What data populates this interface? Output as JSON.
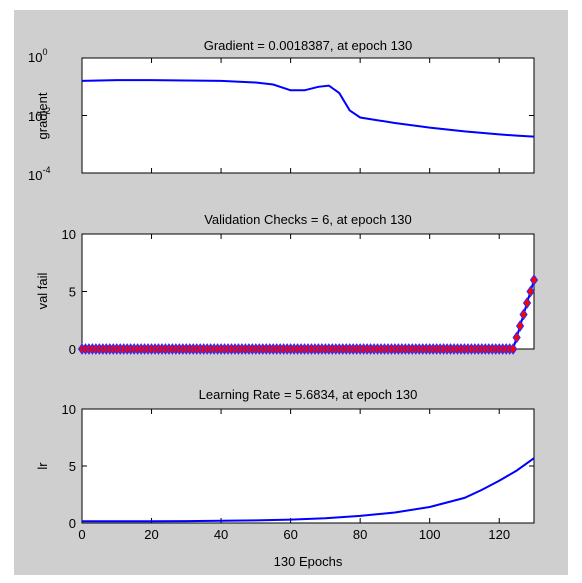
{
  "colors": {
    "figure_bg": "#cfcfcf",
    "axes_bg": "#ffffff",
    "line": "#0000ff",
    "marker_fill": "#ff0000",
    "marker_edge": "#2b2bff"
  },
  "chart_data": [
    {
      "type": "line",
      "title": "Gradient = 0.0018387, at epoch 130",
      "ylabel": "gradient",
      "xlabel": "",
      "yscale": "log",
      "ylim": [
        0.0001,
        1
      ],
      "xlim": [
        0,
        130
      ],
      "ytick_labels": [
        {
          "base": "10",
          "exp": "0"
        },
        {
          "base": "10",
          "exp": "-2"
        },
        {
          "base": "10",
          "exp": "-4"
        }
      ],
      "x": [
        0,
        10,
        20,
        30,
        40,
        50,
        55,
        60,
        64,
        68,
        71,
        74,
        77,
        80,
        90,
        100,
        110,
        120,
        125,
        130
      ],
      "y": [
        0.16,
        0.17,
        0.17,
        0.165,
        0.16,
        0.14,
        0.12,
        0.075,
        0.075,
        0.1,
        0.11,
        0.06,
        0.015,
        0.0085,
        0.0055,
        0.0038,
        0.0028,
        0.0022,
        0.002,
        0.0018387
      ]
    },
    {
      "type": "line",
      "title": "Validation Checks = 6, at epoch 130",
      "ylabel": "val fail",
      "xlabel": "",
      "ylim": [
        0,
        10
      ],
      "xlim": [
        0,
        130
      ],
      "yticks": [
        0,
        5,
        10
      ],
      "markers": "diamond",
      "x_start": 0,
      "x_end": 130,
      "values_rule": "0 for epochs 0-124, then 1..6 for epochs 125-130",
      "zero_until": 124,
      "final_values": [
        1,
        2,
        3,
        4,
        5,
        6
      ]
    },
    {
      "type": "line",
      "title": "Learning Rate = 5.6834, at epoch 130",
      "ylabel": "lr",
      "xlabel": "130 Epochs",
      "ylim": [
        0,
        10
      ],
      "xlim": [
        0,
        130
      ],
      "yticks": [
        0,
        5,
        10
      ],
      "xticks": [
        0,
        20,
        40,
        60,
        80,
        100,
        120
      ],
      "x": [
        0,
        10,
        20,
        30,
        40,
        50,
        60,
        70,
        80,
        90,
        100,
        110,
        115,
        120,
        125,
        130
      ],
      "y": [
        0.15,
        0.15,
        0.16,
        0.17,
        0.19,
        0.23,
        0.3,
        0.42,
        0.62,
        0.92,
        1.4,
        2.2,
        2.9,
        3.7,
        4.6,
        5.6834
      ]
    }
  ]
}
